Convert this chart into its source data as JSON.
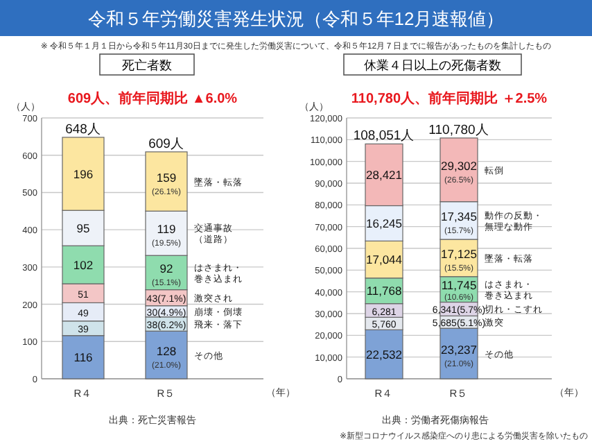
{
  "chart_data": [
    {
      "type": "bar",
      "stacked": true,
      "title": "死亡者数",
      "subtitle": "609人、前年同期比 ▲6.0%",
      "ylabel": "（人）",
      "xlabel": "（年）",
      "annotations": [
        "令和５年労働災害発生状況（令和５年12月速報値）",
        "※ 令和５年１月１日から令和５年11月30日までに発生した労働災害について、令和５年12月７日までに報告があったものを集計したもの",
        "出典：死亡災害報告"
      ],
      "categories": [
        "R４",
        "R５"
      ],
      "ylim": [
        0,
        700
      ],
      "yticks": [
        0,
        100,
        200,
        300,
        400,
        500,
        600,
        700
      ],
      "grid": "y",
      "totals": [
        "648人",
        "609人"
      ],
      "series": [
        {
          "name": "その他",
          "color": "#7ea2d6",
          "values": [
            116,
            128
          ],
          "value_labels": [
            "116",
            "128 (21.0%)"
          ]
        },
        {
          "name": "飛来・落下",
          "color": "#cfe3ea",
          "values": [
            39,
            38
          ],
          "value_labels": [
            "39",
            "38(6.2%)"
          ]
        },
        {
          "name": "崩壊・倒壊",
          "color": "#e6ecf7",
          "values": [
            49,
            30
          ],
          "value_labels": [
            "49",
            "30(4.9%)"
          ]
        },
        {
          "name": "激突され",
          "color": "#f3c6c6",
          "values": [
            51,
            43
          ],
          "value_labels": [
            "51",
            "43(7.1%)"
          ]
        },
        {
          "name": "はさまれ・巻き込まれ",
          "color": "#8fdcae",
          "values": [
            102,
            92
          ],
          "value_labels": [
            "102",
            "92 (15.1%)"
          ]
        },
        {
          "name": "交通事故（道路）",
          "color": "#eef2f8",
          "values": [
            95,
            119
          ],
          "value_labels": [
            "95",
            "119 (19.5%)"
          ]
        },
        {
          "name": "墜落・転落",
          "color": "#fce6a0",
          "values": [
            196,
            159
          ],
          "value_labels": [
            "196",
            "159 (26.1%)"
          ]
        }
      ]
    },
    {
      "type": "bar",
      "stacked": true,
      "title": "休業４日以上の死傷者数",
      "subtitle": "110,780人、前年同期比 ＋2.5%",
      "ylabel": "（人）",
      "xlabel": "（年）",
      "annotations": [
        "出典：労働者死傷病報告",
        "※新型コロナウイルス感染症へのり患による労働災害を除いたもの"
      ],
      "categories": [
        "R４",
        "R５"
      ],
      "ylim": [
        0,
        120000
      ],
      "yticks": [
        0,
        {
          "value": 10000,
          "label": "10,000"
        },
        {
          "value": 20000,
          "label": "20,000"
        },
        {
          "value": 30000,
          "label": "30,000"
        },
        {
          "value": 40000,
          "label": "40,000"
        },
        {
          "value": 50000,
          "label": "50,000"
        },
        {
          "value": 60000,
          "label": "60,000"
        },
        {
          "value": 70000,
          "label": "70,000"
        },
        {
          "value": 80000,
          "label": "80,000"
        },
        {
          "value": 90000,
          "label": "90,000"
        },
        {
          "value": 100000,
          "label": "100,000"
        },
        {
          "value": 110000,
          "label": "110,000"
        },
        {
          "value": 120000,
          "label": "120,000"
        }
      ],
      "grid": "y",
      "totals": [
        "108,051人",
        "110,780人"
      ],
      "series": [
        {
          "name": "その他",
          "color": "#7ea2d6",
          "values": [
            22532,
            23237
          ],
          "value_labels": [
            "22,532",
            "23,237 (21.0%)"
          ]
        },
        {
          "name": "激突",
          "color": "#e4e8ee",
          "values": [
            5760,
            5685
          ],
          "value_labels": [
            "5,760",
            "5,685(5.1%)"
          ]
        },
        {
          "name": "切れ・こすれ",
          "color": "#ddd4e6",
          "values": [
            6281,
            6341
          ],
          "value_labels": [
            "6,281",
            "6,341(5.7%)"
          ]
        },
        {
          "name": "はさまれ・巻き込まれ",
          "color": "#8fdcae",
          "values": [
            11768,
            11745
          ],
          "value_labels": [
            "11,768",
            "11,745 (10.6%)"
          ]
        },
        {
          "name": "墜落・転落",
          "color": "#fce6a0",
          "values": [
            17044,
            17125
          ],
          "value_labels": [
            "17,044",
            "17,125 (15.5%)"
          ]
        },
        {
          "name": "動作の反動・無理な動作",
          "color": "#e8f0fb",
          "values": [
            16245,
            17345
          ],
          "value_labels": [
            "16,245",
            "17,345 (15.7%)"
          ]
        },
        {
          "name": "転倒",
          "color": "#f3b8b8",
          "values": [
            28421,
            29302
          ],
          "value_labels": [
            "28,421",
            "29,302 (26.5%)"
          ]
        }
      ]
    }
  ]
}
